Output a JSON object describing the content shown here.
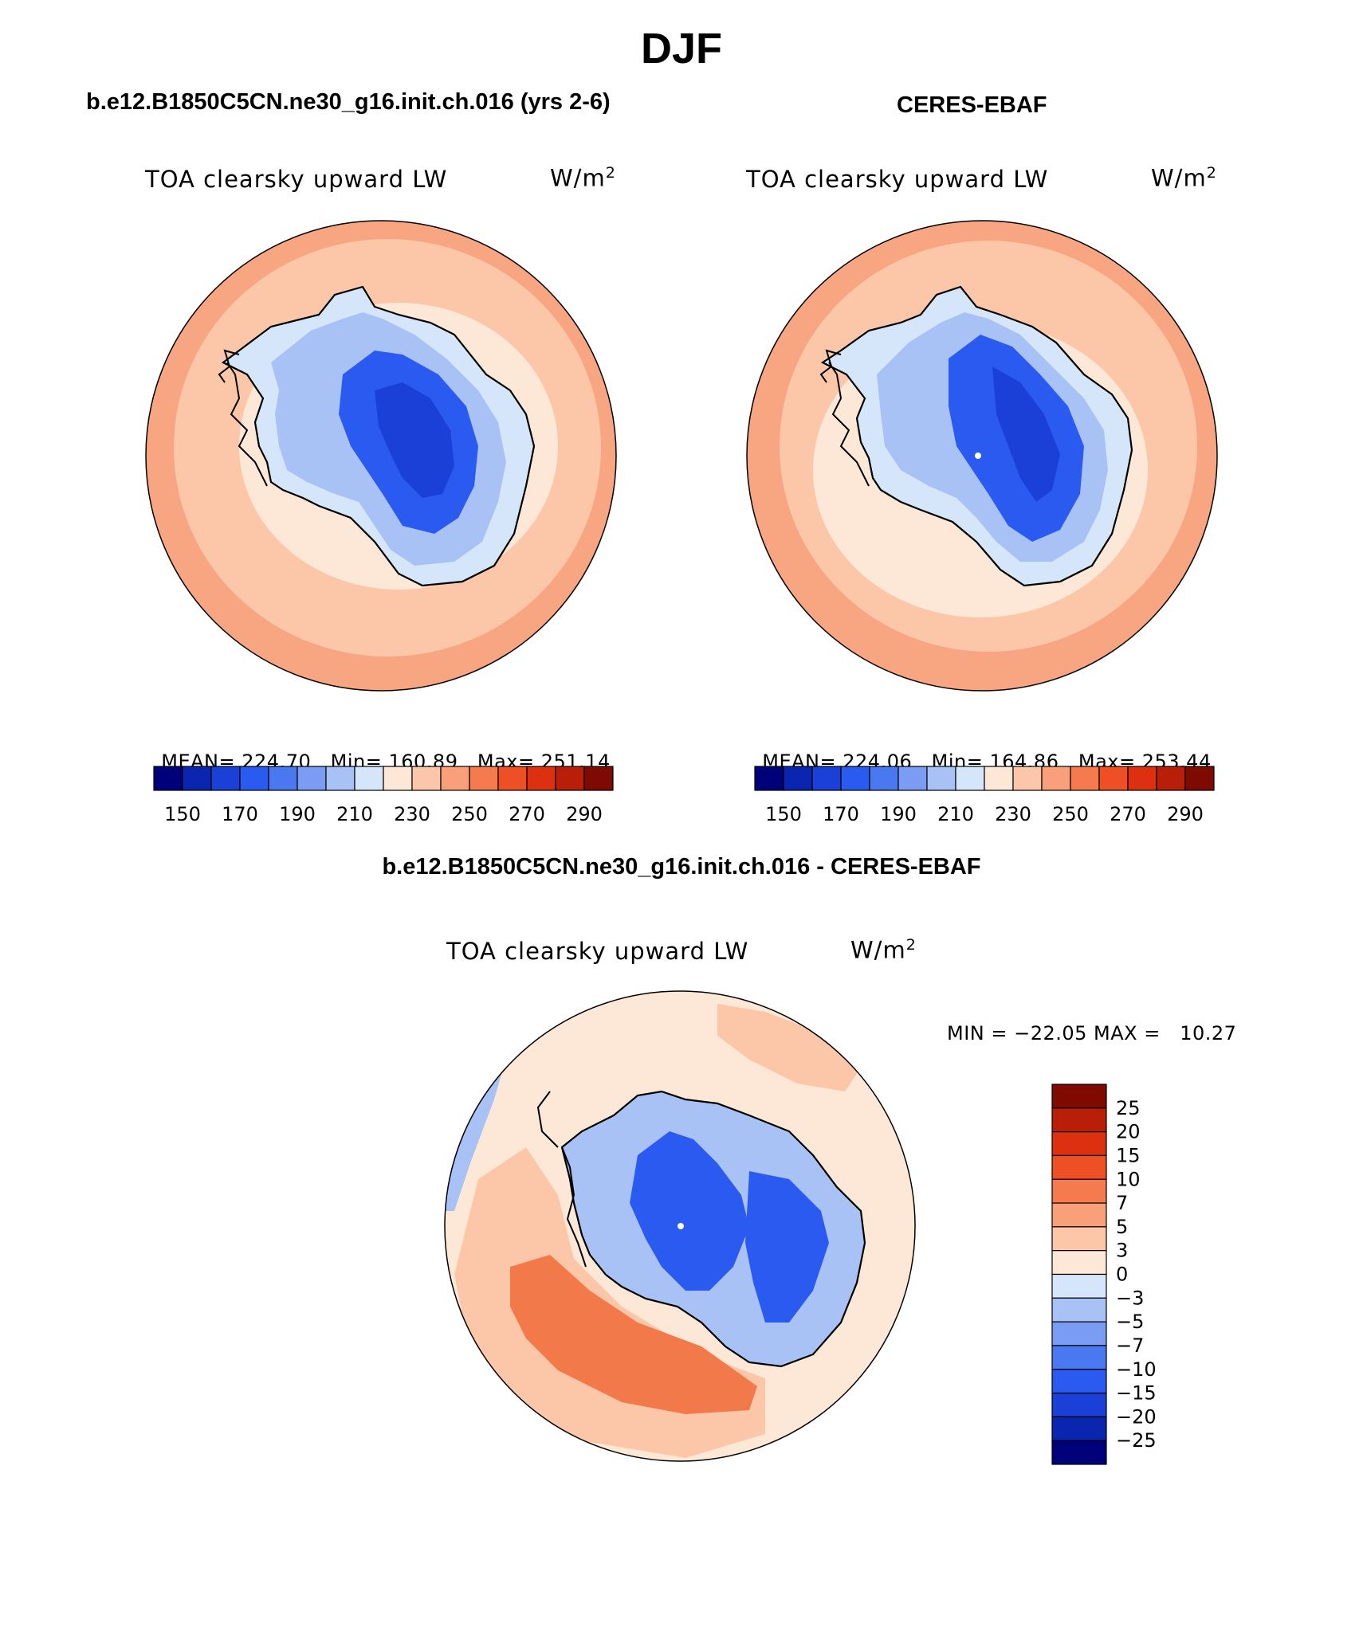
{
  "page": {
    "title": "DJF"
  },
  "panels": {
    "model": {
      "heading": "b.e12.B1850C5CN.ne30_g16.init.ch.016 (yrs 2-6)",
      "field": "TOA clearsky upward LW",
      "units_base": "W/m",
      "units_exp": "2",
      "mean_label": "MEAN=",
      "mean_value": "224.70",
      "min_label": "Min=",
      "min_value": "160.89",
      "max_label": "Max=",
      "max_value": "251.14"
    },
    "obs": {
      "heading": "CERES-EBAF",
      "field": "TOA clearsky upward LW",
      "units_base": "W/m",
      "units_exp": "2",
      "mean_label": "MEAN=",
      "mean_value": "224.06",
      "min_label": "Min=",
      "min_value": "164.86",
      "max_label": "Max=",
      "max_value": "253.44"
    },
    "diff": {
      "heading": "b.e12.B1850C5CN.ne30_g16.init.ch.016 - CERES-EBAF",
      "field": "TOA clearsky upward LW",
      "units_base": "W/m",
      "units_exp": "2",
      "minmax_text": "MIN = −22.05 MAX =   10.27"
    }
  },
  "colorbars": {
    "absolute": {
      "labels": [
        "150",
        "170",
        "190",
        "210",
        "230",
        "250",
        "270",
        "290"
      ],
      "colors": [
        "#00007a",
        "#0a25b0",
        "#1a40d8",
        "#2a5af0",
        "#4a78f0",
        "#7a9cf2",
        "#a8c2f6",
        "#d6e6fa",
        "#fde8d8",
        "#fcc6a8",
        "#f9a07a",
        "#f57a4e",
        "#ee4f25",
        "#dc3010",
        "#b81e08",
        "#7e0a02"
      ]
    },
    "difference": {
      "labels": [
        "25",
        "20",
        "15",
        "10",
        "7",
        "5",
        "3",
        "0",
        "−3",
        "−5",
        "−7",
        "−10",
        "−15",
        "−20",
        "−25"
      ],
      "colors": [
        "#7e0a02",
        "#b81e08",
        "#dc3010",
        "#ee4f25",
        "#f57a4e",
        "#f9a07a",
        "#fcc6a8",
        "#fde8d8",
        "#d6e6fa",
        "#a8c2f6",
        "#7a9cf2",
        "#4a78f0",
        "#2a5af0",
        "#1a40d8",
        "#0a25b0",
        "#00007a"
      ]
    }
  },
  "map_colors": {
    "outer": "#f8a682",
    "ring": "#fcc7a9",
    "inner_ring": "#fde8d8",
    "ice_light": "#d6e6fa",
    "ice_mid": "#a8c2f6",
    "ice_mid2": "#7a9cf2",
    "ice_deep": "#2a5af0",
    "ice_deepest": "#1a40d8",
    "diff_pos_strong": "#f2794a",
    "diff_pos": "#fcc7a9",
    "diff_neg": "#a8c2f6"
  }
}
